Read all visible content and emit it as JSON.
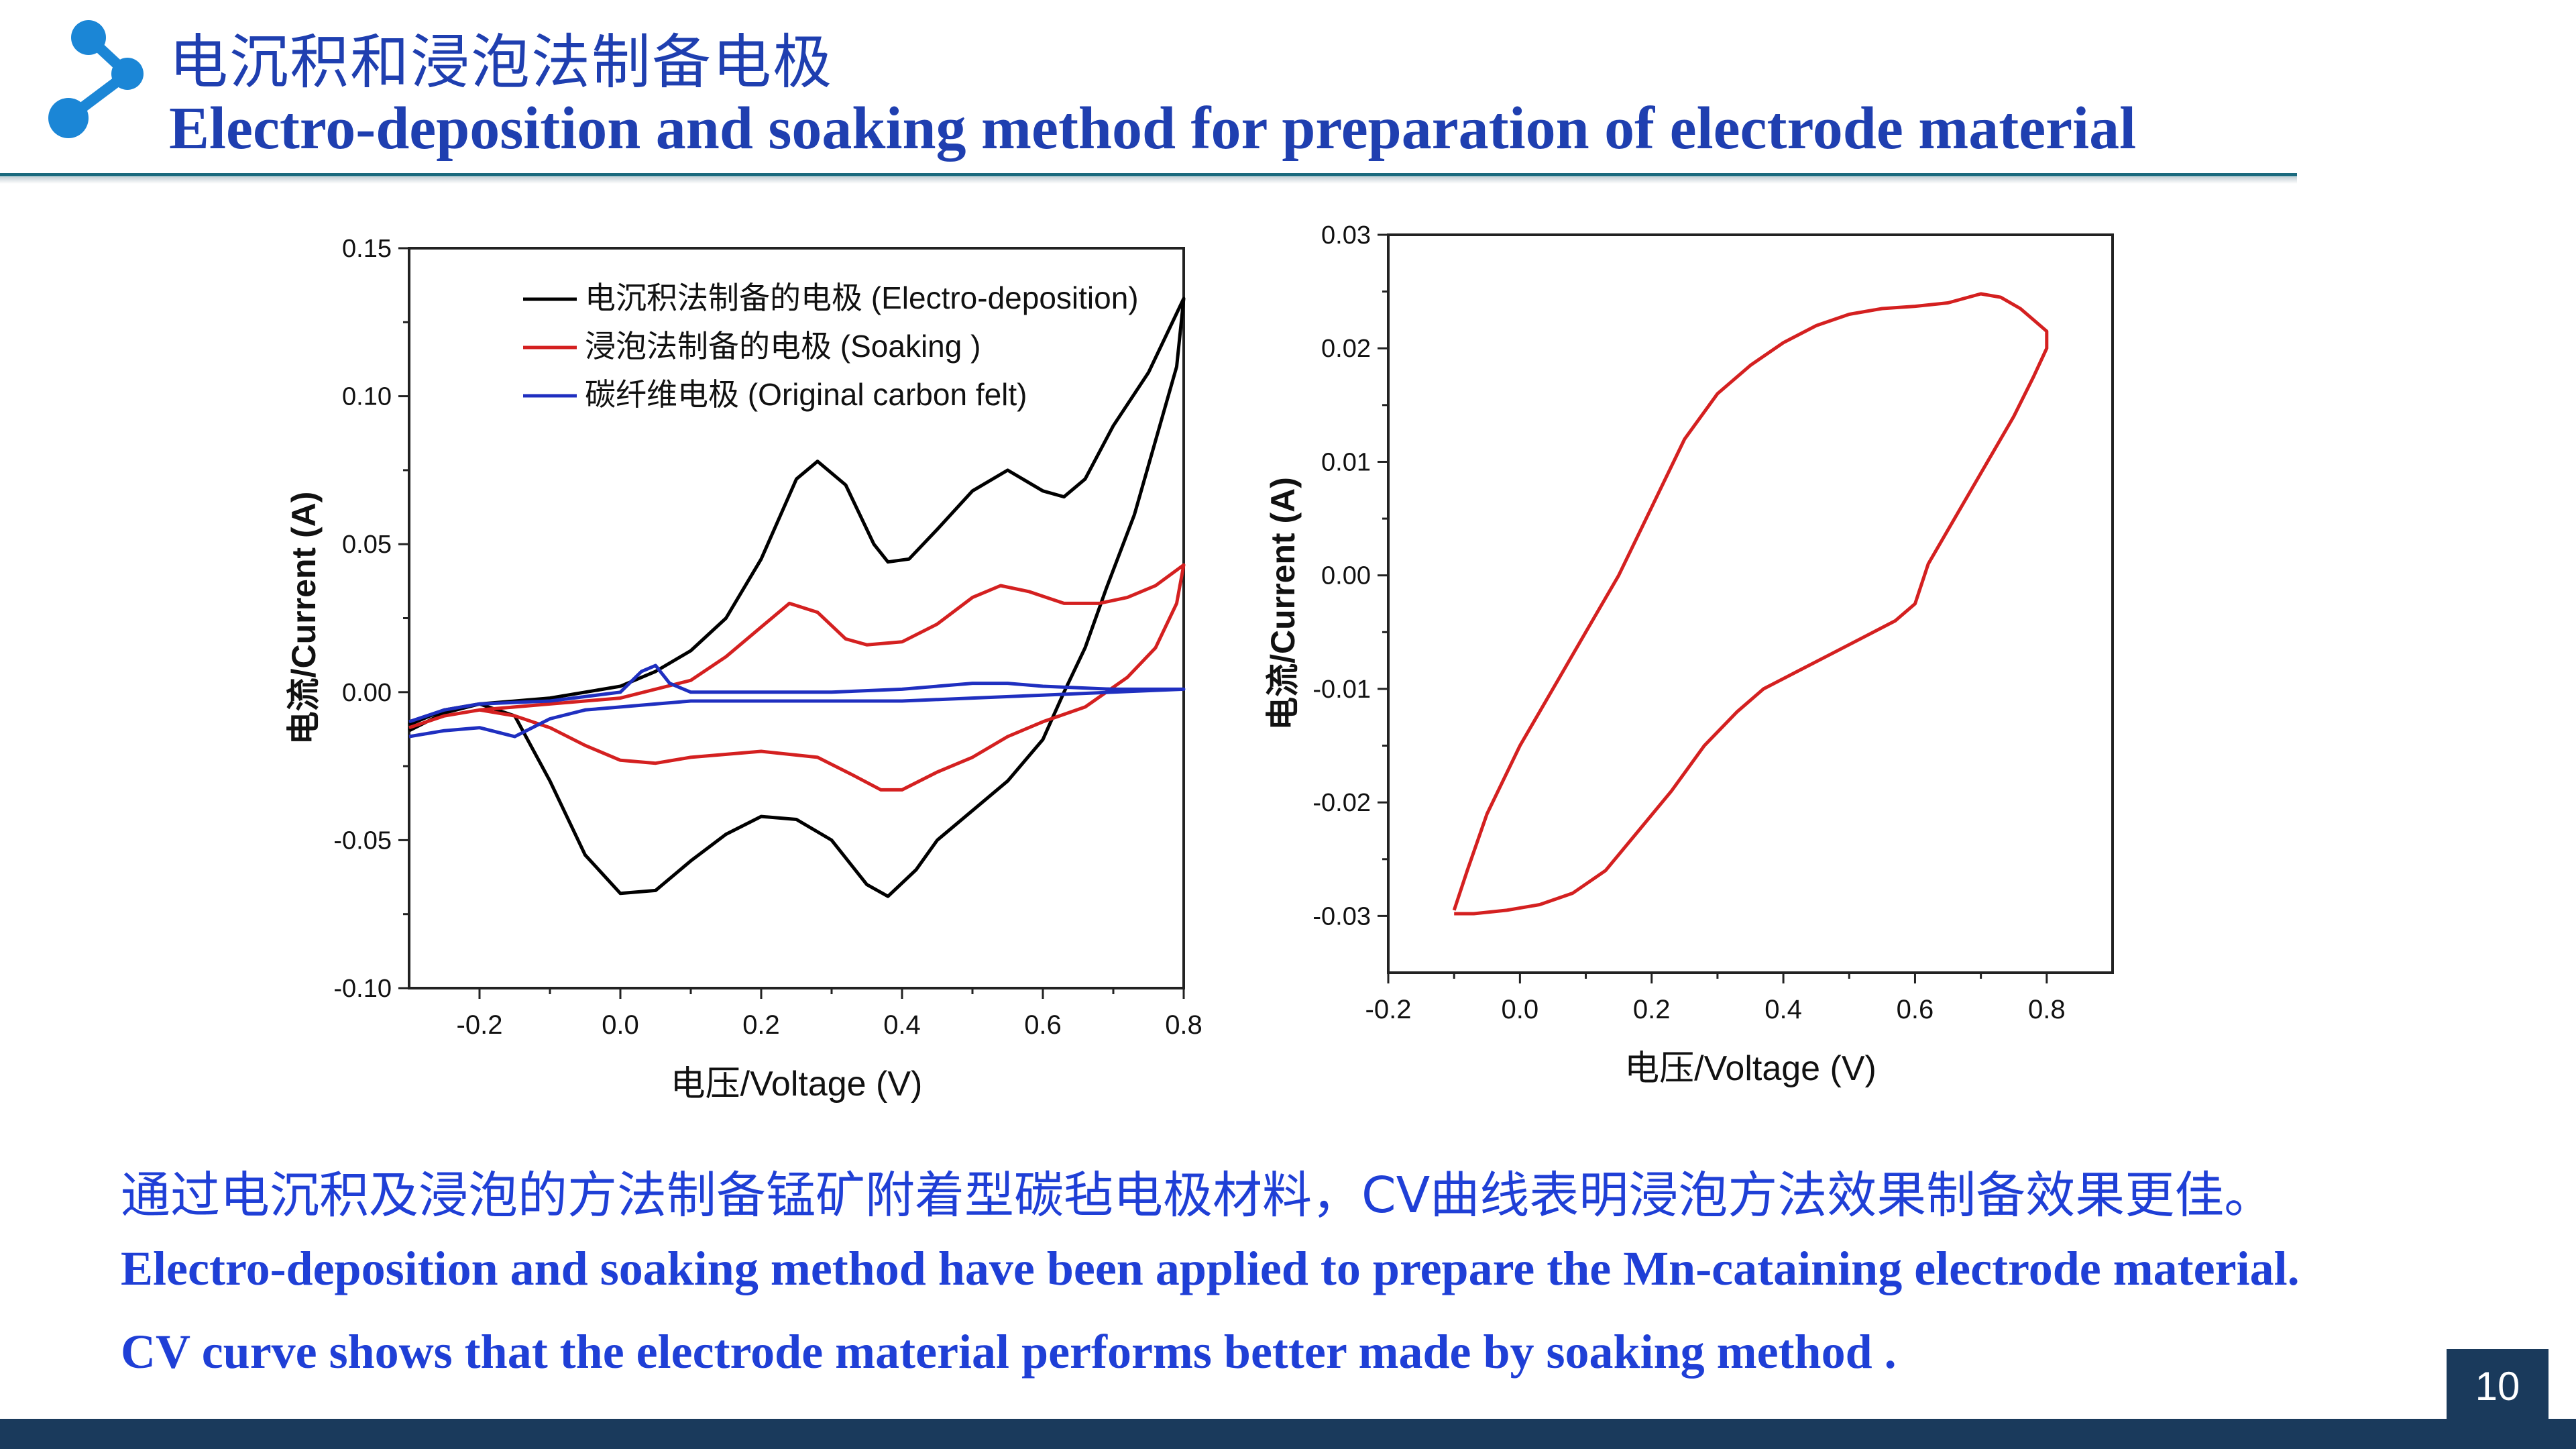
{
  "header": {
    "title_cn": "电沉积和浸泡法制备电极",
    "title_en": "Electro-deposition and soaking method for preparation of electrode material"
  },
  "body": {
    "desc_cn": "通过电沉积及浸泡的方法制备锰矿附着型碳毡电极材料，CV曲线表明浸泡方法效果制备效果更佳。",
    "desc_en_1": "Electro-deposition and soaking method have been applied to prepare the Mn-cataining electrode material.",
    "desc_en_2": "CV curve shows that the electrode material performs better made by soaking method ."
  },
  "footer": {
    "page_number": "10",
    "bar_color": "#1a3a5c"
  },
  "colors": {
    "title": "#1f3fb0",
    "body_text": "#1f3fd6",
    "accent": "#1b6a7e",
    "logo": "#1b86d6"
  },
  "icons": {
    "logo": "molecule-share-icon"
  },
  "chart_data": [
    {
      "type": "line",
      "xlabel": "电压/Voltage (V)",
      "ylabel": "电流/Current (A)",
      "xlim": [
        -0.3,
        0.8
      ],
      "ylim": [
        -0.1,
        0.15
      ],
      "xticks": [
        -0.2,
        0.0,
        0.2,
        0.4,
        0.6,
        0.8
      ],
      "xtick_labels": [
        "-0.2",
        "0.0",
        "0.2",
        "0.4",
        "0.6",
        "0.8"
      ],
      "yticks": [
        -0.1,
        -0.05,
        0.0,
        0.05,
        0.1,
        0.15
      ],
      "ytick_labels": [
        "-0.10",
        "-0.05",
        "0.00",
        "0.05",
        "0.10",
        "0.15"
      ],
      "legend_position": "top-right",
      "series": [
        {
          "name": "电沉积法制备的电极 (Electro-deposition)",
          "color": "#000000",
          "points": [
            [
              -0.3,
              -0.013
            ],
            [
              -0.25,
              -0.007
            ],
            [
              -0.2,
              -0.004
            ],
            [
              -0.1,
              -0.002
            ],
            [
              0.0,
              0.002
            ],
            [
              0.05,
              0.007
            ],
            [
              0.1,
              0.014
            ],
            [
              0.15,
              0.025
            ],
            [
              0.2,
              0.045
            ],
            [
              0.25,
              0.072
            ],
            [
              0.28,
              0.078
            ],
            [
              0.32,
              0.07
            ],
            [
              0.36,
              0.05
            ],
            [
              0.38,
              0.044
            ],
            [
              0.41,
              0.045
            ],
            [
              0.45,
              0.055
            ],
            [
              0.5,
              0.068
            ],
            [
              0.55,
              0.075
            ],
            [
              0.6,
              0.068
            ],
            [
              0.63,
              0.066
            ],
            [
              0.66,
              0.072
            ],
            [
              0.7,
              0.09
            ],
            [
              0.75,
              0.108
            ],
            [
              0.8,
              0.133
            ],
            [
              0.79,
              0.11
            ],
            [
              0.76,
              0.085
            ],
            [
              0.73,
              0.06
            ],
            [
              0.69,
              0.035
            ],
            [
              0.66,
              0.015
            ],
            [
              0.63,
              0.0
            ],
            [
              0.6,
              -0.016
            ],
            [
              0.55,
              -0.03
            ],
            [
              0.5,
              -0.04
            ],
            [
              0.45,
              -0.05
            ],
            [
              0.42,
              -0.06
            ],
            [
              0.38,
              -0.069
            ],
            [
              0.35,
              -0.065
            ],
            [
              0.3,
              -0.05
            ],
            [
              0.25,
              -0.043
            ],
            [
              0.2,
              -0.042
            ],
            [
              0.15,
              -0.048
            ],
            [
              0.1,
              -0.057
            ],
            [
              0.05,
              -0.067
            ],
            [
              0.0,
              -0.068
            ],
            [
              -0.05,
              -0.055
            ],
            [
              -0.1,
              -0.03
            ],
            [
              -0.15,
              -0.008
            ],
            [
              -0.2,
              -0.004
            ],
            [
              -0.25,
              -0.006
            ],
            [
              -0.3,
              -0.011
            ]
          ]
        },
        {
          "name": "浸泡法制备的电极 (Soaking )",
          "color": "#d42020",
          "points": [
            [
              -0.3,
              -0.012
            ],
            [
              -0.25,
              -0.008
            ],
            [
              -0.2,
              -0.006
            ],
            [
              -0.1,
              -0.004
            ],
            [
              0.0,
              -0.002
            ],
            [
              0.1,
              0.004
            ],
            [
              0.15,
              0.012
            ],
            [
              0.2,
              0.022
            ],
            [
              0.24,
              0.03
            ],
            [
              0.28,
              0.027
            ],
            [
              0.32,
              0.018
            ],
            [
              0.35,
              0.016
            ],
            [
              0.4,
              0.017
            ],
            [
              0.45,
              0.023
            ],
            [
              0.5,
              0.032
            ],
            [
              0.54,
              0.036
            ],
            [
              0.58,
              0.034
            ],
            [
              0.63,
              0.03
            ],
            [
              0.68,
              0.03
            ],
            [
              0.72,
              0.032
            ],
            [
              0.76,
              0.036
            ],
            [
              0.8,
              0.043
            ],
            [
              0.79,
              0.03
            ],
            [
              0.76,
              0.015
            ],
            [
              0.72,
              0.005
            ],
            [
              0.66,
              -0.005
            ],
            [
              0.6,
              -0.01
            ],
            [
              0.55,
              -0.015
            ],
            [
              0.5,
              -0.022
            ],
            [
              0.45,
              -0.027
            ],
            [
              0.4,
              -0.033
            ],
            [
              0.37,
              -0.033
            ],
            [
              0.33,
              -0.028
            ],
            [
              0.28,
              -0.022
            ],
            [
              0.2,
              -0.02
            ],
            [
              0.1,
              -0.022
            ],
            [
              0.05,
              -0.024
            ],
            [
              0.0,
              -0.023
            ],
            [
              -0.05,
              -0.018
            ],
            [
              -0.1,
              -0.012
            ],
            [
              -0.15,
              -0.008
            ],
            [
              -0.2,
              -0.006
            ],
            [
              -0.25,
              -0.008
            ],
            [
              -0.3,
              -0.012
            ]
          ]
        },
        {
          "name": "碳纤维电极 (Original carbon felt)",
          "color": "#1f2fc0",
          "points": [
            [
              -0.3,
              -0.01
            ],
            [
              -0.25,
              -0.006
            ],
            [
              -0.2,
              -0.004
            ],
            [
              -0.1,
              -0.003
            ],
            [
              0.0,
              0.0
            ],
            [
              0.03,
              0.007
            ],
            [
              0.05,
              0.009
            ],
            [
              0.07,
              0.003
            ],
            [
              0.1,
              0.0
            ],
            [
              0.2,
              0.0
            ],
            [
              0.3,
              0.0
            ],
            [
              0.4,
              0.001
            ],
            [
              0.5,
              0.003
            ],
            [
              0.55,
              0.003
            ],
            [
              0.6,
              0.002
            ],
            [
              0.7,
              0.001
            ],
            [
              0.8,
              0.001
            ],
            [
              0.7,
              0.0
            ],
            [
              0.6,
              -0.001
            ],
            [
              0.5,
              -0.002
            ],
            [
              0.4,
              -0.003
            ],
            [
              0.3,
              -0.003
            ],
            [
              0.2,
              -0.003
            ],
            [
              0.1,
              -0.003
            ],
            [
              0.05,
              -0.004
            ],
            [
              0.0,
              -0.005
            ],
            [
              -0.05,
              -0.006
            ],
            [
              -0.1,
              -0.009
            ],
            [
              -0.15,
              -0.015
            ],
            [
              -0.2,
              -0.012
            ],
            [
              -0.25,
              -0.013
            ],
            [
              -0.3,
              -0.015
            ]
          ]
        }
      ]
    },
    {
      "type": "line",
      "xlabel": "电压/Voltage (V)",
      "ylabel": "电流/Current (A)",
      "xlim": [
        -0.2,
        0.9
      ],
      "ylim": [
        -0.035,
        0.03
      ],
      "xticks": [
        -0.2,
        0.0,
        0.2,
        0.4,
        0.6,
        0.8
      ],
      "xtick_labels": [
        "-0.2",
        "0.0",
        "0.2",
        "0.4",
        "0.6",
        "0.8"
      ],
      "yticks": [
        -0.03,
        -0.02,
        -0.01,
        0.0,
        0.01,
        0.02,
        0.03
      ],
      "ytick_labels": [
        "-0.03",
        "-0.02",
        "-0.01",
        "0.00",
        "0.01",
        "0.02",
        "0.03"
      ],
      "series": [
        {
          "color": "#d42020",
          "points": [
            [
              -0.1,
              -0.0295
            ],
            [
              -0.08,
              -0.026
            ],
            [
              -0.05,
              -0.021
            ],
            [
              0.0,
              -0.015
            ],
            [
              0.05,
              -0.01
            ],
            [
              0.1,
              -0.005
            ],
            [
              0.15,
              0.0
            ],
            [
              0.2,
              0.006
            ],
            [
              0.25,
              0.012
            ],
            [
              0.3,
              0.016
            ],
            [
              0.35,
              0.0185
            ],
            [
              0.4,
              0.0205
            ],
            [
              0.45,
              0.022
            ],
            [
              0.5,
              0.023
            ],
            [
              0.55,
              0.0235
            ],
            [
              0.6,
              0.0237
            ],
            [
              0.65,
              0.024
            ],
            [
              0.7,
              0.0248
            ],
            [
              0.73,
              0.0245
            ],
            [
              0.76,
              0.0235
            ],
            [
              0.78,
              0.0225
            ],
            [
              0.8,
              0.0215
            ],
            [
              0.8,
              0.02
            ],
            [
              0.78,
              0.0175
            ],
            [
              0.75,
              0.014
            ],
            [
              0.7,
              0.009
            ],
            [
              0.65,
              0.004
            ],
            [
              0.62,
              0.001
            ],
            [
              0.6,
              -0.0025
            ],
            [
              0.57,
              -0.004
            ],
            [
              0.52,
              -0.0055
            ],
            [
              0.47,
              -0.007
            ],
            [
              0.42,
              -0.0085
            ],
            [
              0.37,
              -0.01
            ],
            [
              0.33,
              -0.012
            ],
            [
              0.28,
              -0.015
            ],
            [
              0.23,
              -0.019
            ],
            [
              0.18,
              -0.0225
            ],
            [
              0.13,
              -0.026
            ],
            [
              0.08,
              -0.028
            ],
            [
              0.03,
              -0.029
            ],
            [
              -0.02,
              -0.0295
            ],
            [
              -0.07,
              -0.0298
            ],
            [
              -0.1,
              -0.0298
            ]
          ]
        }
      ]
    }
  ]
}
